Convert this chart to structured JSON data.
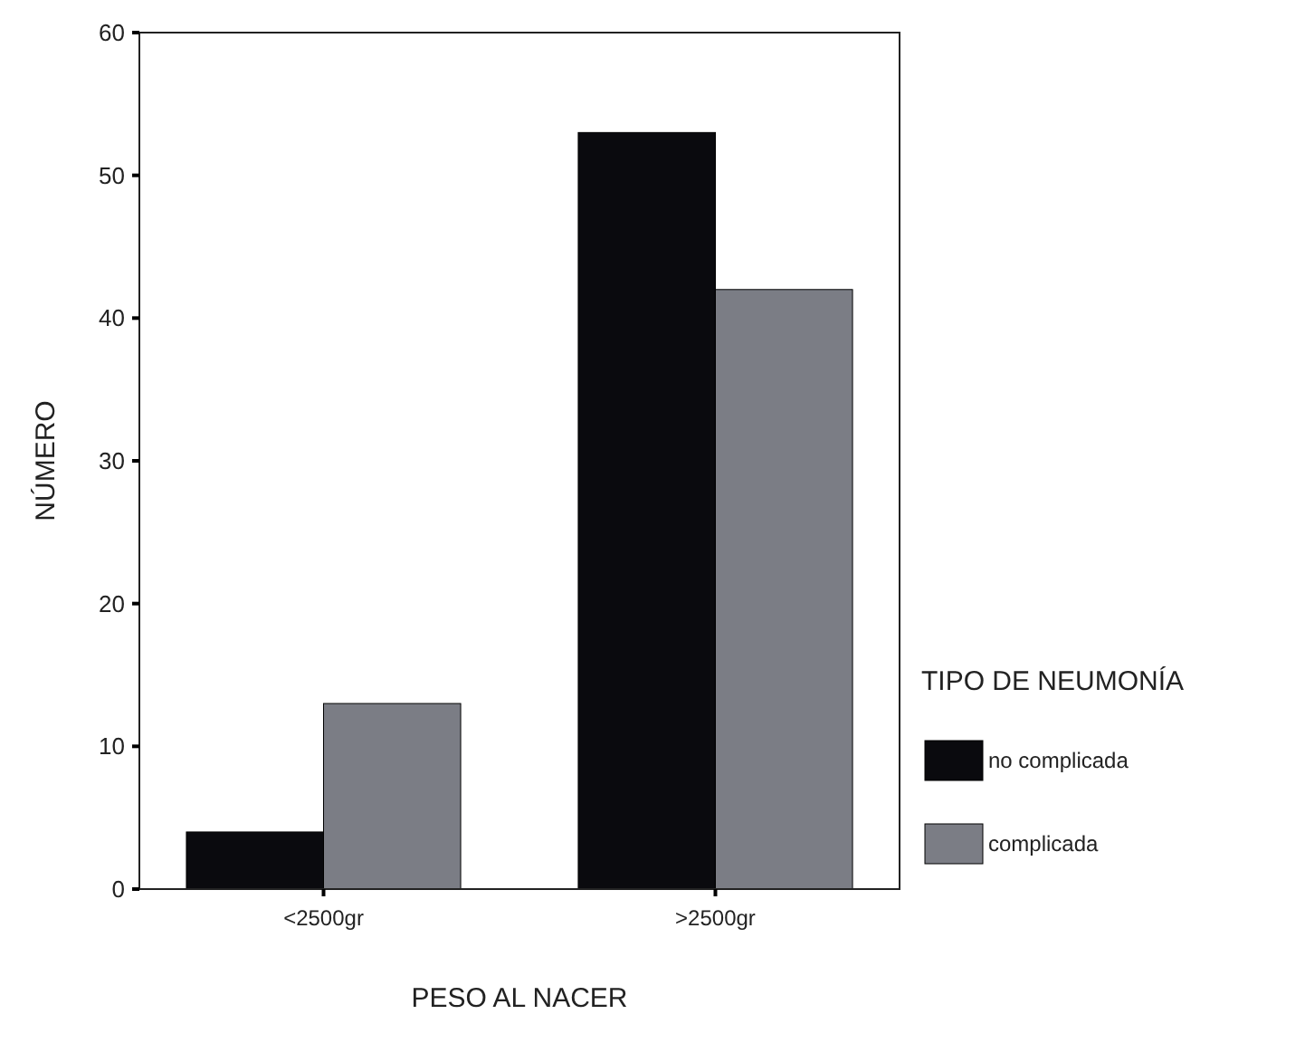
{
  "chart_data": {
    "type": "bar",
    "xlabel": "PESO AL NACER",
    "ylabel": "NÚMERO",
    "legend_title": "TIPO DE NEUMONÍA",
    "categories": [
      "<2500gr",
      ">2500gr"
    ],
    "series": [
      {
        "name": "no complicada",
        "color": "#0a0a0e",
        "values": [
          4,
          53
        ]
      },
      {
        "name": "complicada",
        "color": "#7b7d85",
        "values": [
          13,
          42
        ]
      }
    ],
    "ylim": [
      0,
      60
    ],
    "yticks": [
      0,
      10,
      20,
      30,
      40,
      50,
      60
    ],
    "grid": false,
    "legend": "right"
  }
}
